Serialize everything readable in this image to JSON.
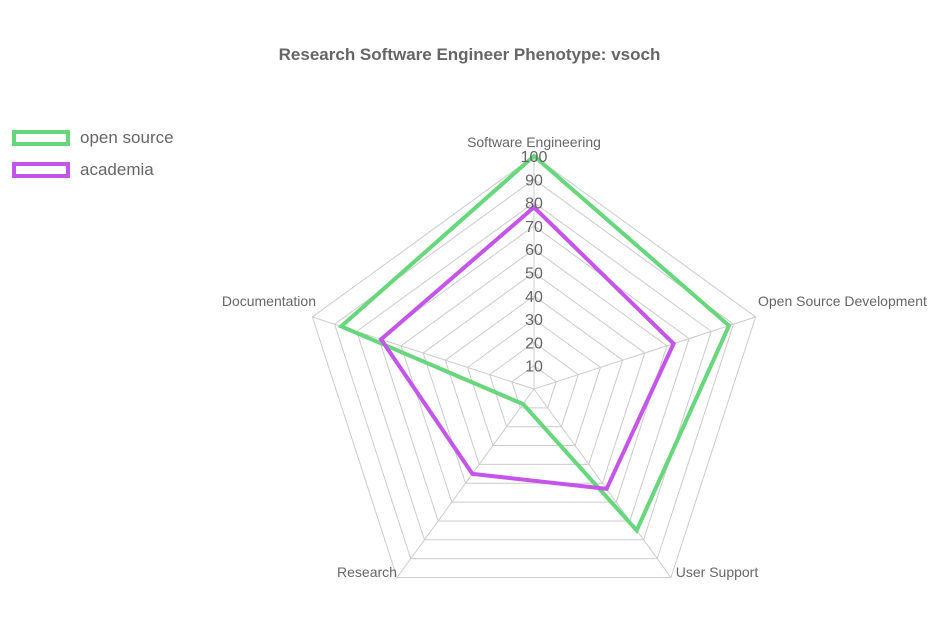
{
  "chart_data": {
    "type": "radar",
    "title": "Research Software Engineer Phenotype: vsoch",
    "axes": [
      "Software Engineering",
      "Open Source Development",
      "User Support",
      "Research",
      "Documentation"
    ],
    "range": [
      0,
      100
    ],
    "ticks": [
      "10",
      "20",
      "30",
      "40",
      "50",
      "60",
      "70",
      "80",
      "90",
      "100"
    ],
    "grid": true,
    "legend_position": "top-left",
    "series": [
      {
        "name": "open source",
        "color": "#66d77a",
        "values": [
          100,
          88,
          75,
          8,
          87
        ]
      },
      {
        "name": "academia",
        "color": "#c554e8",
        "values": [
          78,
          63,
          53,
          45,
          69
        ]
      }
    ]
  }
}
